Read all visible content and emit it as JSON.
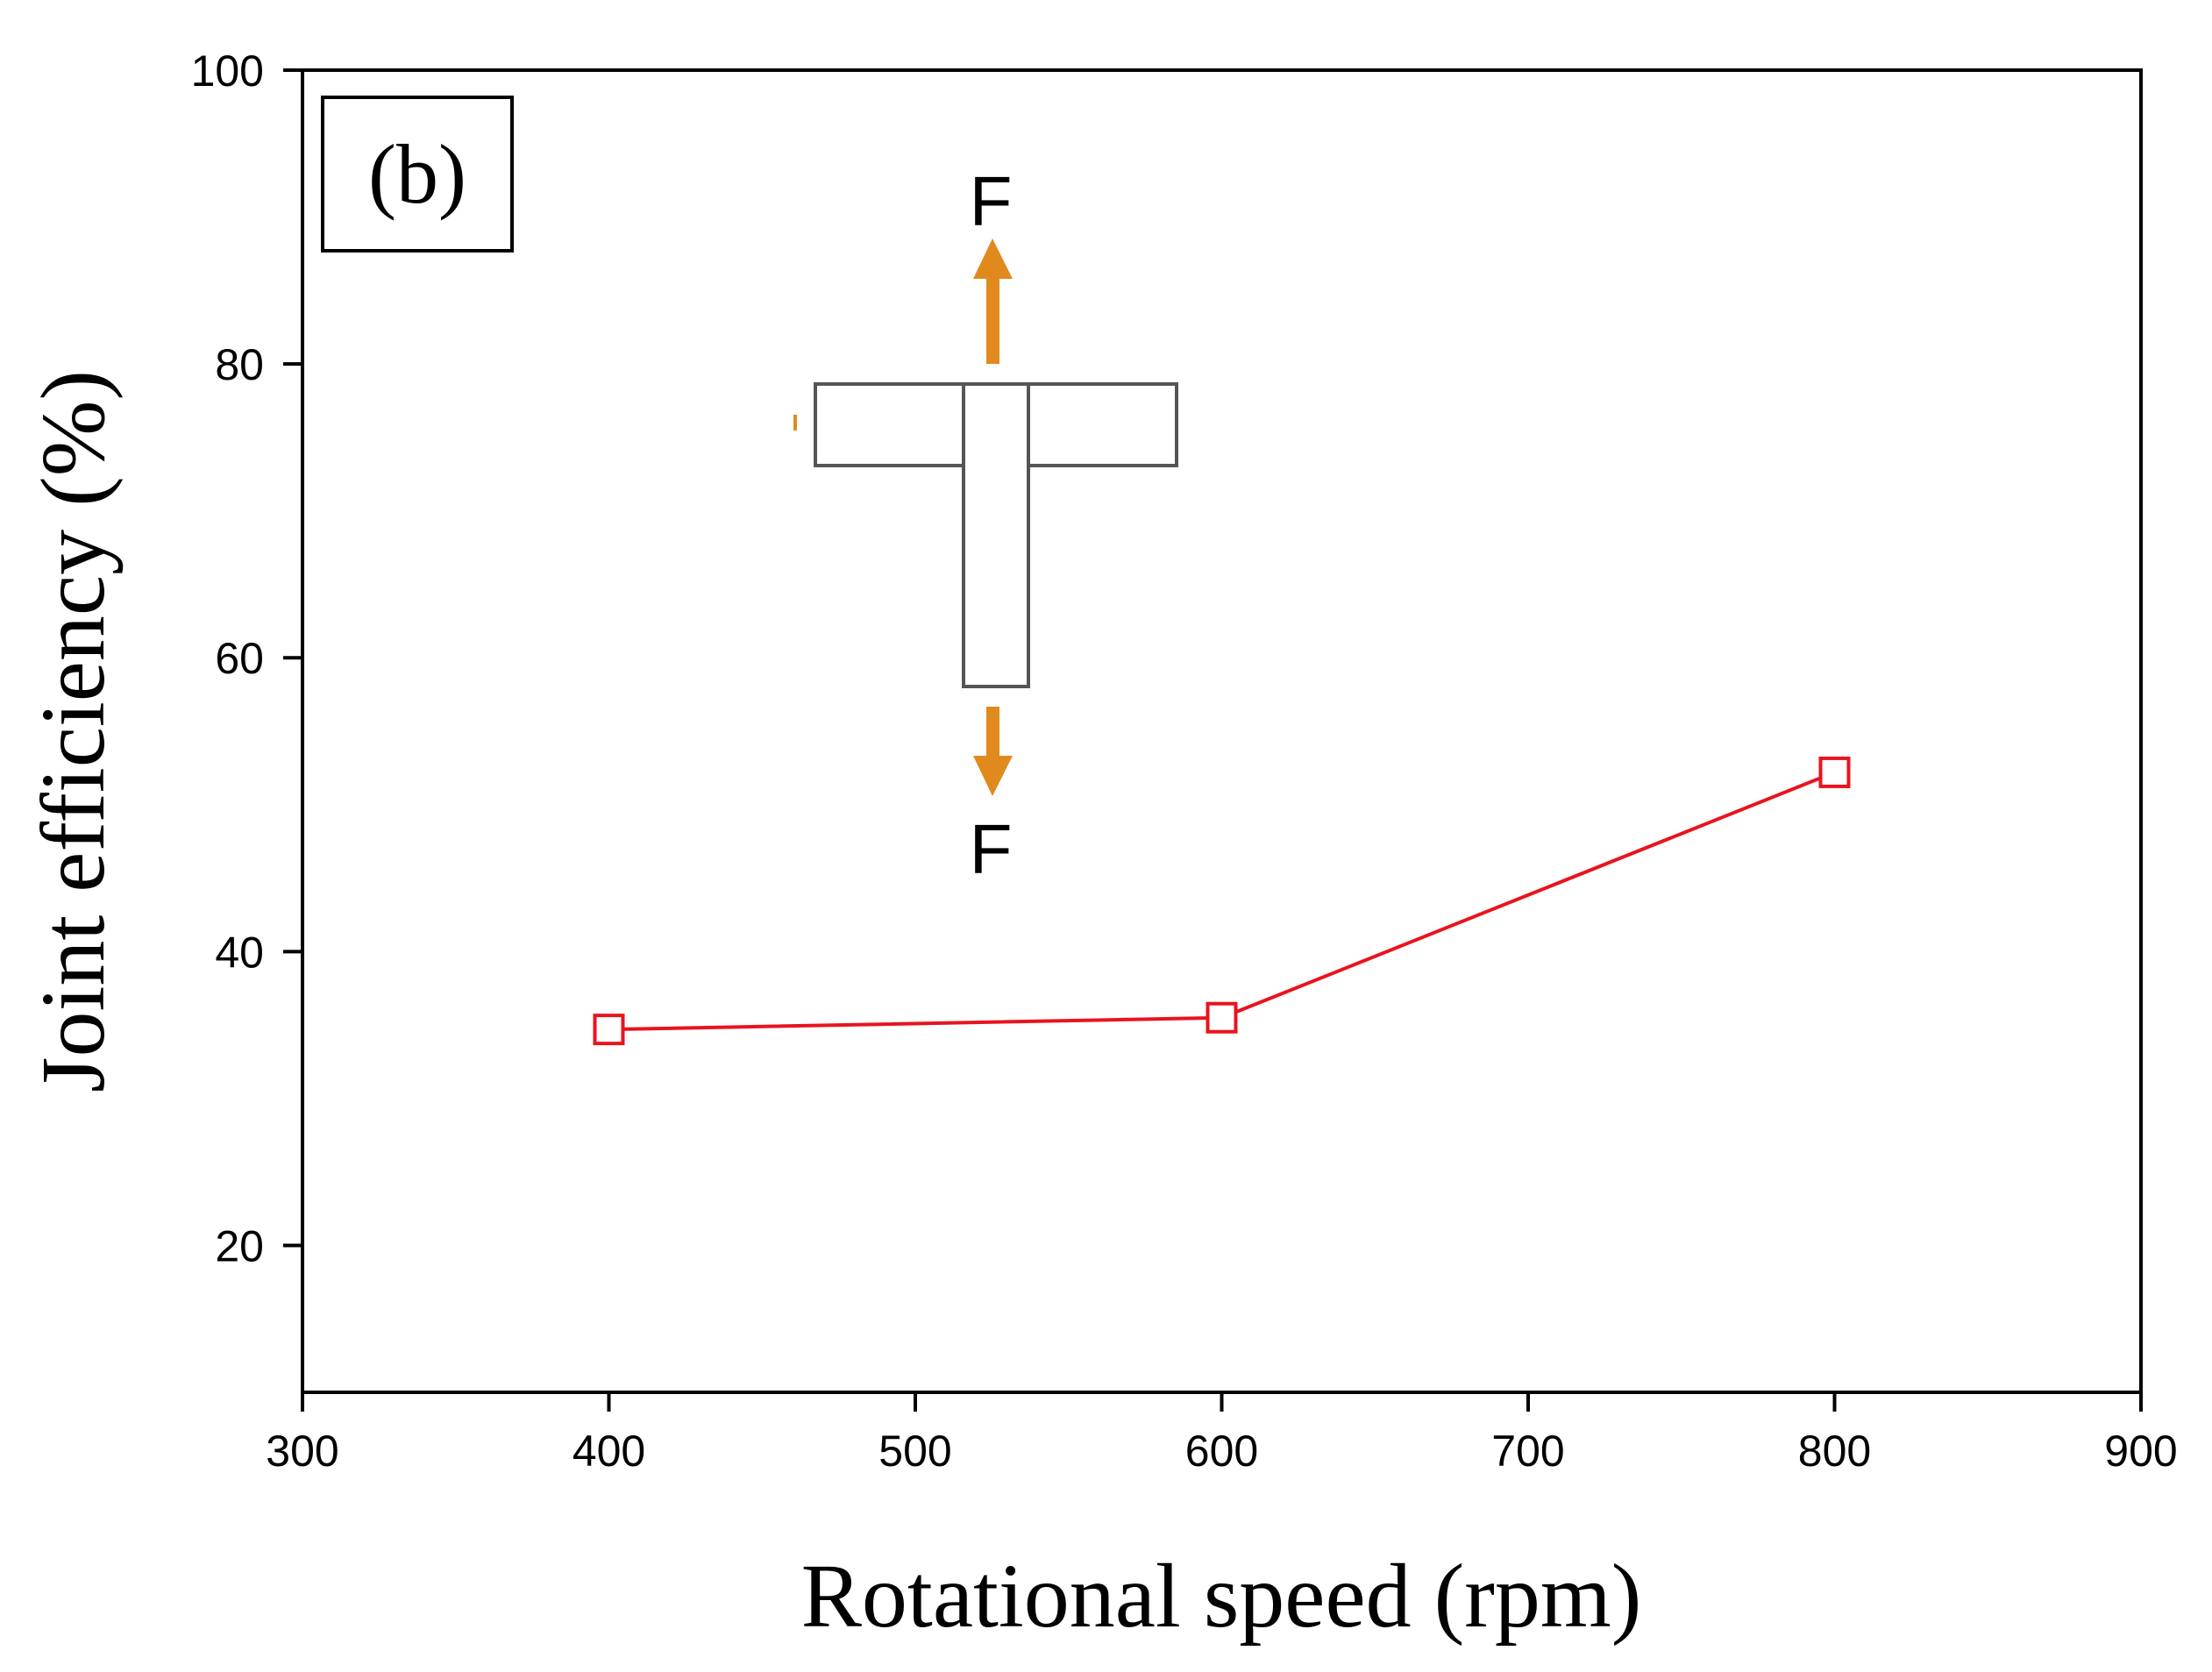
{
  "chart_data": {
    "type": "line",
    "title": "",
    "panel_label": "(b)",
    "xlabel": "Rotational speed (rpm)",
    "ylabel": "Joint efficiency (%)",
    "xlim": [
      300,
      900
    ],
    "ylim": [
      10,
      100
    ],
    "xticks": [
      300,
      400,
      500,
      600,
      700,
      800,
      900
    ],
    "yticks": [
      20,
      40,
      60,
      80,
      100
    ],
    "xtick_labels": [
      "300",
      "400",
      "500",
      "600",
      "700",
      "800",
      "900"
    ],
    "ytick_labels": [
      "20",
      "40",
      "60",
      "80",
      "100"
    ],
    "grid": false,
    "series": [
      {
        "name": "Joint efficiency",
        "color": "#e8141e",
        "marker": "open-square",
        "x": [
          400,
          600,
          800
        ],
        "y": [
          34.7,
          35.5,
          52.2
        ]
      }
    ],
    "inset": {
      "description_label_top": "F",
      "description_label_bottom": "F",
      "arrow_color": "#e08a1e"
    }
  }
}
